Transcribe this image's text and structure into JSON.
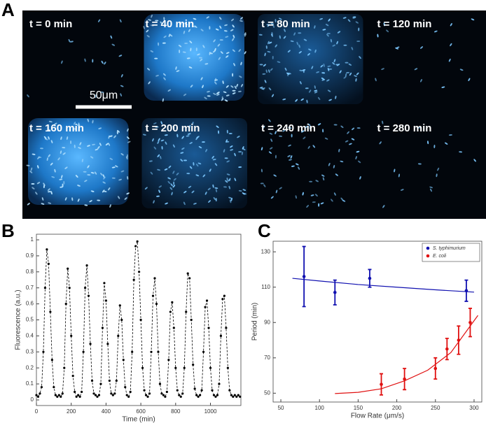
{
  "panel_a": {
    "label": "A",
    "frames": [
      "t = 0 min",
      "t = 40 min",
      "t = 80 min",
      "t = 120 min",
      "t = 160 min",
      "t = 200 min",
      "t = 240 min",
      "t = 280 min"
    ],
    "scale_bar": "50μm"
  },
  "chart_data": [
    {
      "type": "line",
      "label": "B",
      "xlabel": "Time (min)",
      "ylabel": "Fluorescence (a.u.)",
      "color": "#000000",
      "xlim": [
        0,
        1175
      ],
      "xticks": [
        0,
        200,
        400,
        600,
        800,
        1000
      ],
      "ylim": [
        -0.035,
        1.035
      ],
      "yticks": [
        0,
        0.1,
        0.2,
        0.3,
        0.4,
        0.5,
        0.6,
        0.7,
        0.8,
        0.9,
        1
      ],
      "x": [
        0,
        10,
        20,
        30,
        40,
        50,
        60,
        70,
        80,
        90,
        100,
        110,
        120,
        130,
        140,
        150,
        160,
        170,
        180,
        190,
        200,
        210,
        220,
        230,
        240,
        250,
        260,
        270,
        280,
        290,
        300,
        310,
        320,
        330,
        340,
        350,
        360,
        370,
        380,
        390,
        400,
        410,
        420,
        430,
        440,
        450,
        460,
        470,
        480,
        490,
        500,
        510,
        520,
        530,
        540,
        550,
        560,
        570,
        580,
        590,
        600,
        610,
        620,
        630,
        640,
        650,
        660,
        670,
        680,
        690,
        700,
        710,
        720,
        730,
        740,
        750,
        760,
        770,
        780,
        790,
        800,
        810,
        820,
        830,
        840,
        850,
        860,
        870,
        880,
        890,
        900,
        910,
        920,
        930,
        940,
        950,
        960,
        970,
        980,
        990,
        1000,
        1010,
        1020,
        1030,
        1040,
        1050,
        1060,
        1070,
        1080,
        1090,
        1100,
        1110,
        1120,
        1130,
        1140,
        1150,
        1160,
        1170
      ],
      "values": [
        0.03,
        0.02,
        0.04,
        0.08,
        0.3,
        0.7,
        0.94,
        0.85,
        0.55,
        0.25,
        0.08,
        0.03,
        0.02,
        0.03,
        0.02,
        0.04,
        0.2,
        0.6,
        0.82,
        0.7,
        0.4,
        0.15,
        0.05,
        0.02,
        0.03,
        0.02,
        0.05,
        0.3,
        0.7,
        0.84,
        0.65,
        0.35,
        0.12,
        0.04,
        0.03,
        0.02,
        0.03,
        0.1,
        0.45,
        0.73,
        0.62,
        0.35,
        0.12,
        0.04,
        0.03,
        0.04,
        0.12,
        0.4,
        0.59,
        0.5,
        0.25,
        0.08,
        0.03,
        0.02,
        0.05,
        0.3,
        0.75,
        0.96,
        0.99,
        0.8,
        0.5,
        0.2,
        0.06,
        0.03,
        0.02,
        0.04,
        0.3,
        0.65,
        0.76,
        0.6,
        0.3,
        0.1,
        0.04,
        0.03,
        0.02,
        0.05,
        0.25,
        0.55,
        0.61,
        0.45,
        0.2,
        0.06,
        0.03,
        0.02,
        0.04,
        0.2,
        0.55,
        0.79,
        0.76,
        0.5,
        0.22,
        0.07,
        0.03,
        0.02,
        0.03,
        0.06,
        0.3,
        0.58,
        0.62,
        0.45,
        0.2,
        0.06,
        0.03,
        0.02,
        0.03,
        0.1,
        0.4,
        0.63,
        0.65,
        0.45,
        0.2,
        0.06,
        0.03,
        0.02,
        0.03,
        0.02,
        0.03,
        0.02
      ]
    },
    {
      "type": "scatter",
      "label": "C",
      "xlabel": "Flow Rate (μm/s)",
      "ylabel": "Period (min)",
      "xlim": [
        40,
        310
      ],
      "xticks": [
        50,
        100,
        150,
        200,
        250,
        300
      ],
      "ylim": [
        45,
        136
      ],
      "yticks": [
        50,
        70,
        90,
        110,
        130
      ],
      "legend": "upper right",
      "series": [
        {
          "name": "S. typhimurium",
          "color": "#1010b0",
          "x": [
            80,
            120,
            165,
            290
          ],
          "values": [
            116,
            107,
            115,
            108
          ],
          "errors": [
            17,
            7,
            5,
            6
          ]
        },
        {
          "name": "E. coli",
          "color": "#e01010",
          "x": [
            180,
            210,
            250,
            265,
            280,
            295
          ],
          "values": [
            55,
            58,
            64,
            75,
            80,
            90
          ],
          "errors": [
            6,
            6,
            6,
            6,
            8,
            8
          ]
        }
      ],
      "fits": [
        {
          "color": "#1010b0",
          "x": [
            65,
            100,
            150,
            200,
            250,
            300
          ],
          "values": [
            115,
            113.5,
            111.5,
            110,
            108.5,
            107.2
          ]
        },
        {
          "color": "#e01010",
          "x": [
            120,
            150,
            180,
            210,
            240,
            270,
            305
          ],
          "values": [
            49.8,
            50.5,
            52.5,
            57,
            63,
            73,
            94
          ]
        }
      ]
    }
  ]
}
